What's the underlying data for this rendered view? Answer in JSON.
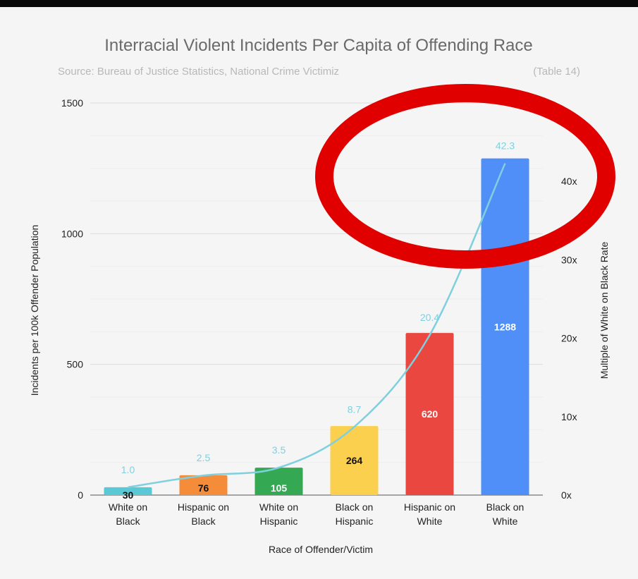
{
  "chart_data": {
    "type": "bar",
    "title": "Interracial Violent Incidents Per Capita of Offending Race",
    "subtitle": "Source: Bureau of Justice Statistics, National Crime Victimiz",
    "subtitle_tail": "(Table 14)",
    "xlabel": "Race of Offender/Victim",
    "ylabel": "Incidents per 100k Offender Population",
    "y2label": "Multiple of White on Black Rate",
    "ylim": [
      0,
      1500
    ],
    "y2lim": [
      0,
      50
    ],
    "yticks": [
      "0",
      "500",
      "1000",
      "1500"
    ],
    "y2ticks": [
      "0x",
      "10x",
      "20x",
      "30x",
      "40x"
    ],
    "grid": true,
    "categories": [
      [
        "White on",
        "Black"
      ],
      [
        "Hispanic on",
        "Black"
      ],
      [
        "White on",
        "Hispanic"
      ],
      [
        "Black on",
        "Hispanic"
      ],
      [
        "Hispanic on",
        "White"
      ],
      [
        "Black on",
        "White"
      ]
    ],
    "values": [
      30,
      76,
      105,
      264,
      620,
      1288
    ],
    "bar_colors": [
      "#5bc8d6",
      "#f58c3a",
      "#34a853",
      "#fbd04e",
      "#e9473f",
      "#4f8ff7"
    ],
    "bar_label_colors": [
      "#111111",
      "#111111",
      "#ffffff",
      "#111111",
      "#ffffff",
      "#ffffff"
    ],
    "ratio_series": {
      "values": [
        1.0,
        2.5,
        3.5,
        8.7,
        20.4,
        42.3
      ],
      "labels": [
        "1.0",
        "2.5",
        "3.5",
        "8.7",
        "20.4",
        "42.3"
      ],
      "color": "#7fd0de"
    },
    "annotation": {
      "shape": "ellipse",
      "color": "#e00000"
    }
  }
}
